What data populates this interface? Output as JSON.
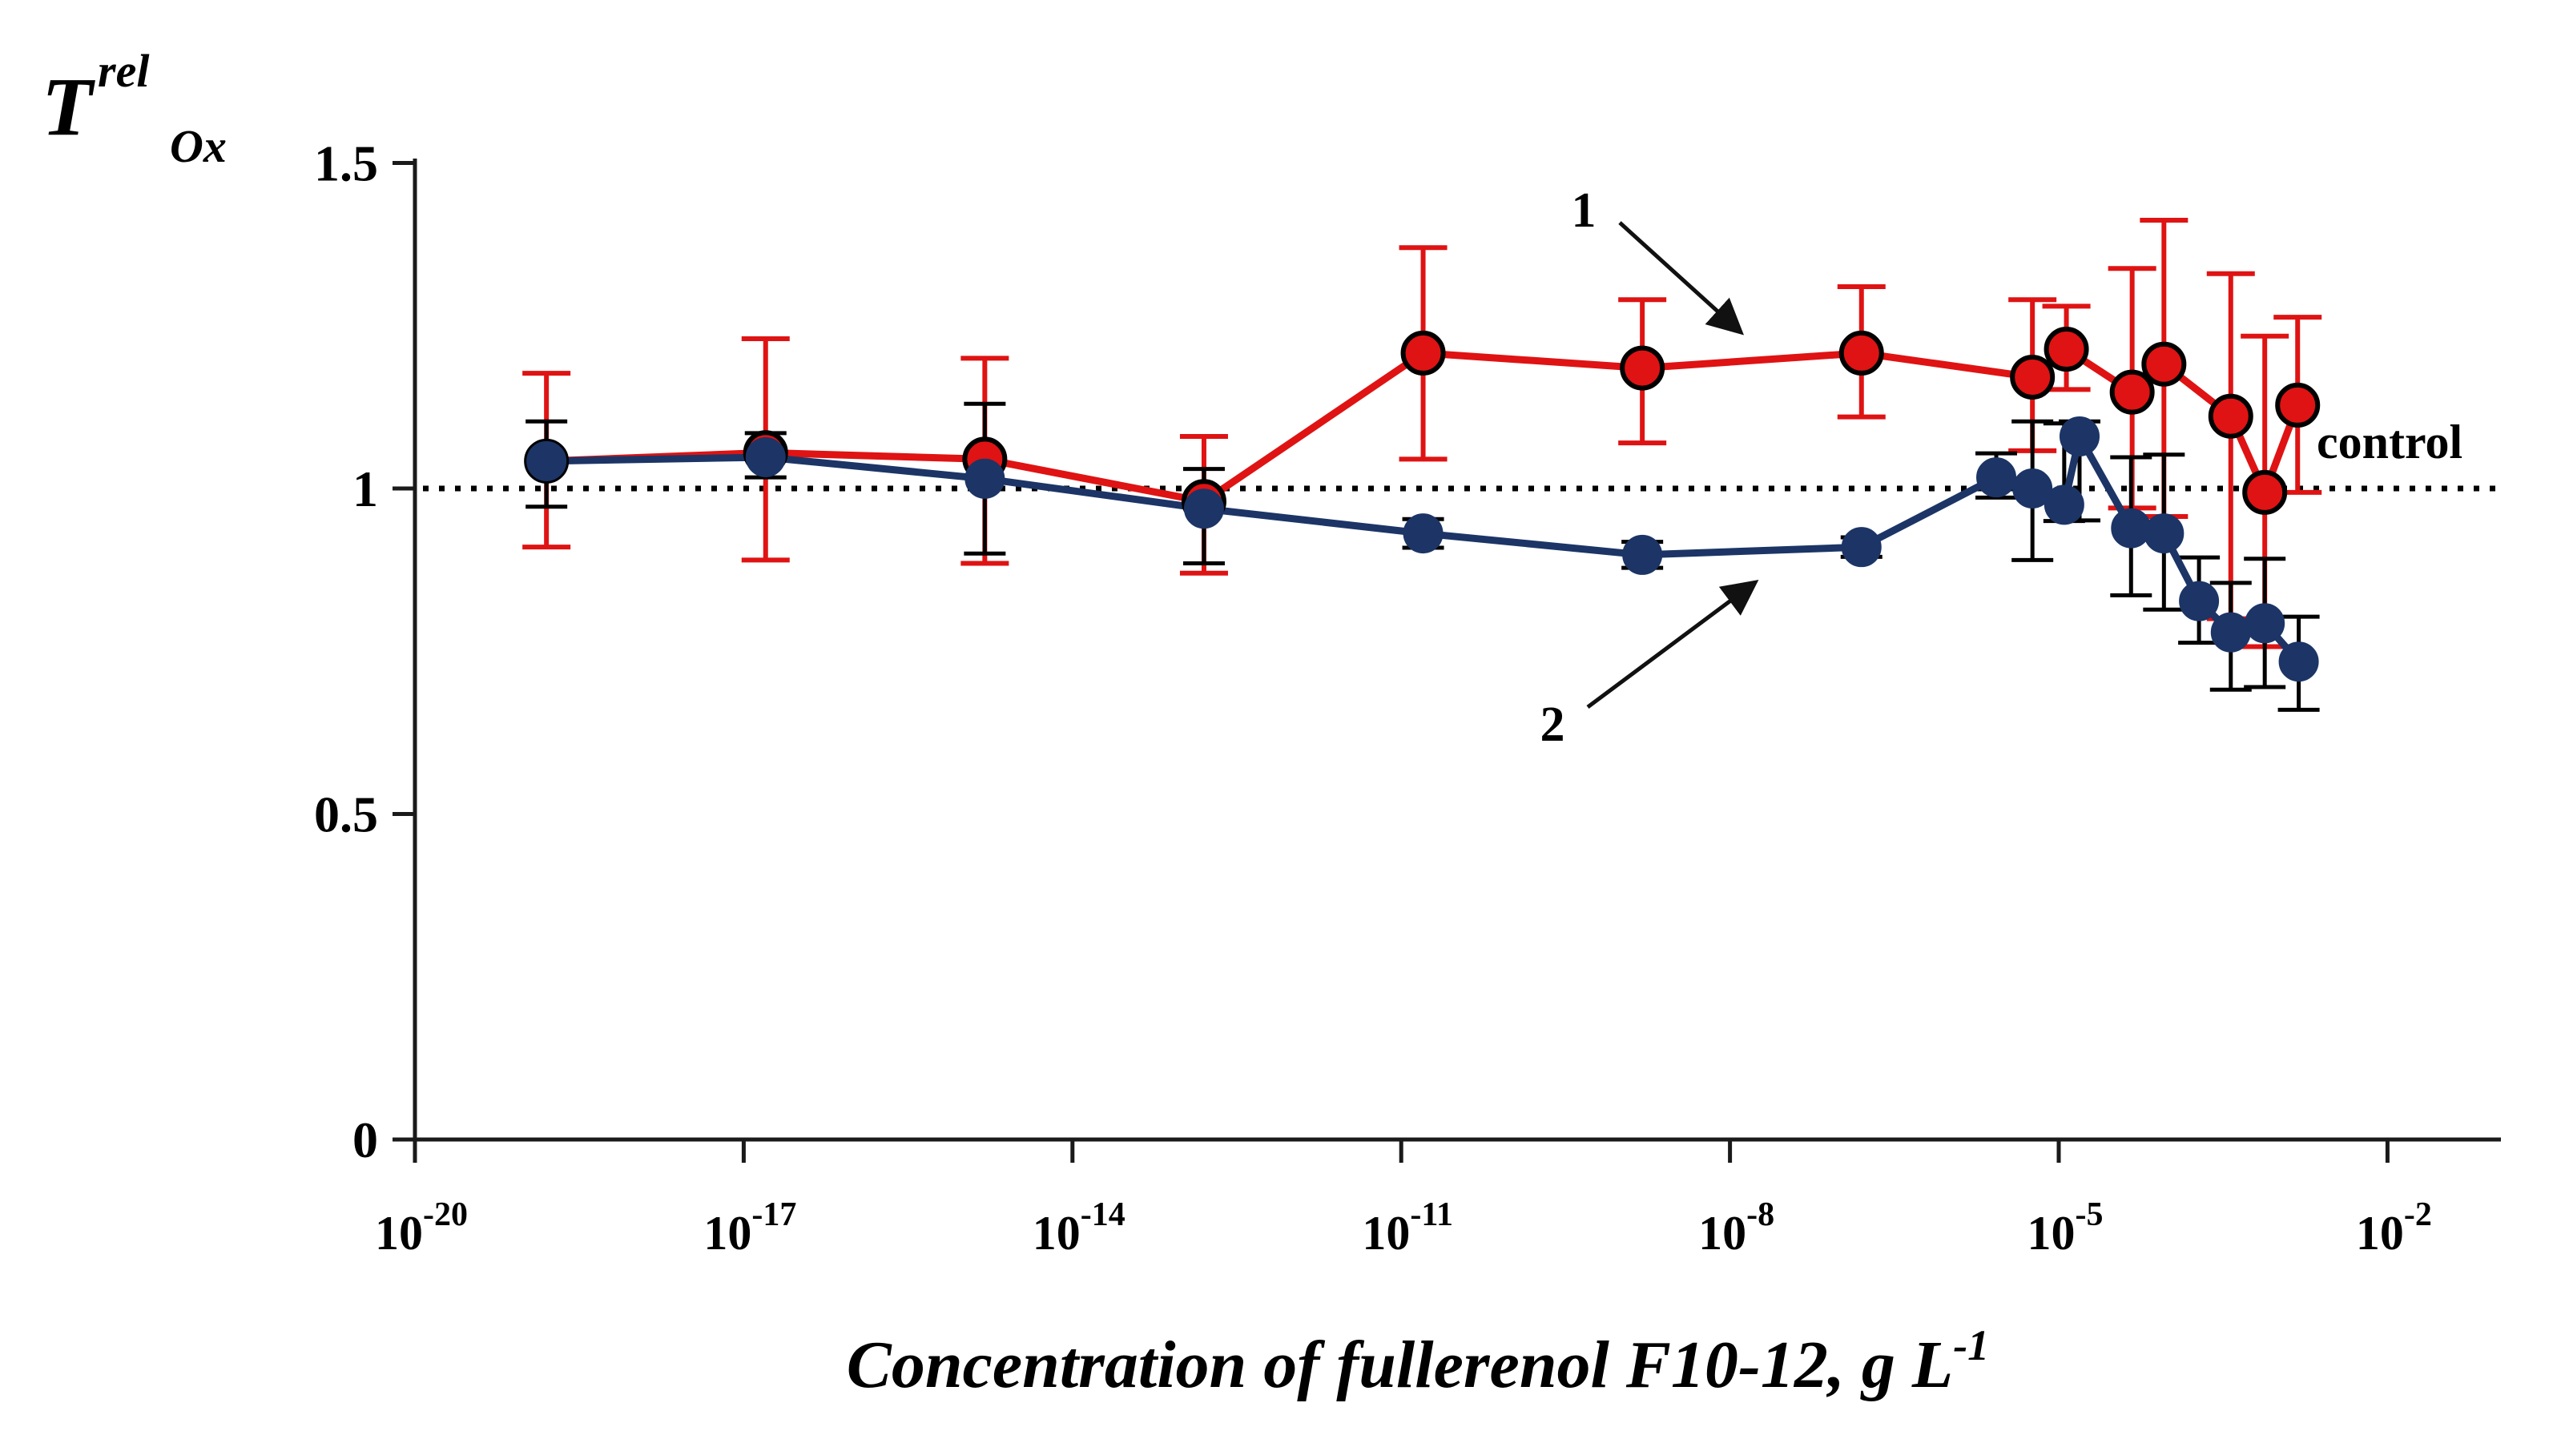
{
  "chart_data": {
    "type": "line",
    "y_axis_title": {
      "main": "T",
      "sup": "rel",
      "sub": "Ox"
    },
    "x_axis_title": {
      "main": "Concentration of fullerenol F10-12, g L",
      "exp": "-1"
    },
    "control_label": "control",
    "control_line_y": 1.0,
    "x_scale": "log10",
    "xlim_log": [
      -20.9,
      -1.2
    ],
    "ylim": [
      0,
      1.55
    ],
    "grid": false,
    "legend_position": "none",
    "x_ticks": [
      {
        "base": "10",
        "exp": "-20",
        "log": -20
      },
      {
        "base": "10",
        "exp": "-17",
        "log": -17
      },
      {
        "base": "10",
        "exp": "-14",
        "log": -14
      },
      {
        "base": "10",
        "exp": "-11",
        "log": -11
      },
      {
        "base": "10",
        "exp": "-8",
        "log": -8
      },
      {
        "base": "10",
        "exp": "-5",
        "log": -5
      },
      {
        "base": "10",
        "exp": "-2",
        "log": -2
      }
    ],
    "y_ticks": [
      {
        "label": "1.5",
        "value": 1.5
      },
      {
        "label": "1",
        "value": 1.0
      },
      {
        "label": "0.5",
        "value": 0.5
      },
      {
        "label": "0",
        "value": 0.0
      }
    ],
    "series": [
      {
        "name": "1",
        "color": "#df1313",
        "err_color": "#df1313",
        "marker": "circle-black-ring",
        "points": [
          {
            "logc": -18.8,
            "y": 1.042,
            "eu": 0.135,
            "ed": 0.132
          },
          {
            "logc": -16.8,
            "y": 1.055,
            "eu": 0.175,
            "ed": 0.165
          },
          {
            "logc": -14.8,
            "y": 1.045,
            "eu": 0.155,
            "ed": 0.16
          },
          {
            "logc": -12.8,
            "y": 0.98,
            "eu": 0.1,
            "ed": 0.11
          },
          {
            "logc": -10.8,
            "y": 1.208,
            "eu": 0.162,
            "ed": 0.163
          },
          {
            "logc": -8.8,
            "y": 1.185,
            "eu": 0.105,
            "ed": 0.115
          },
          {
            "logc": -6.8,
            "y": 1.208,
            "eu": 0.102,
            "ed": 0.098
          },
          {
            "logc": -5.24,
            "y": 1.171,
            "eu": 0.119,
            "ed": 0.113
          },
          {
            "logc": -4.93,
            "y": 1.214,
            "eu": 0.066,
            "ed": 0.062
          },
          {
            "logc": -4.33,
            "y": 1.148,
            "eu": 0.19,
            "ed": 0.178
          },
          {
            "logc": -4.04,
            "y": 1.191,
            "eu": 0.221,
            "ed": 0.234
          },
          {
            "logc": -3.43,
            "y": 1.111,
            "eu": 0.219,
            "ed": 0.311
          },
          {
            "logc": -3.12,
            "y": 0.994,
            "eu": 0.24,
            "ed": 0.237
          },
          {
            "logc": -2.82,
            "y": 1.128,
            "eu": 0.135,
            "ed": 0.134
          }
        ]
      },
      {
        "name": "2",
        "color": "#1c3566",
        "err_color": "#000000",
        "marker": "circle",
        "points": [
          {
            "logc": -18.8,
            "y": 1.042,
            "eu": 0.061,
            "ed": 0.07
          },
          {
            "logc": -16.8,
            "y": 1.048,
            "eu": 0.037,
            "ed": 0.031
          },
          {
            "logc": -14.8,
            "y": 1.015,
            "eu": 0.115,
            "ed": 0.115
          },
          {
            "logc": -12.8,
            "y": 0.969,
            "eu": 0.061,
            "ed": 0.084
          },
          {
            "logc": -10.8,
            "y": 0.931,
            "eu": 0.022,
            "ed": 0.022
          },
          {
            "logc": -8.8,
            "y": 0.898,
            "eu": 0.02,
            "ed": 0.02
          },
          {
            "logc": -6.8,
            "y": 0.91,
            "eu": 0.015,
            "ed": 0.015
          },
          {
            "logc": -5.57,
            "y": 1.017,
            "eu": 0.037,
            "ed": 0.031
          },
          {
            "logc": -5.24,
            "y": 1.0,
            "eu": 0.103,
            "ed": 0.11
          },
          {
            "logc": -4.95,
            "y": 0.975,
            "eu": 0.125,
            "ed": 0.025
          },
          {
            "logc": -4.81,
            "y": 1.08,
            "eu": 0.023,
            "ed": 0.129
          },
          {
            "logc": -4.34,
            "y": 0.939,
            "eu": 0.109,
            "ed": 0.103
          },
          {
            "logc": -4.04,
            "y": 0.931,
            "eu": 0.121,
            "ed": 0.117
          },
          {
            "logc": -3.72,
            "y": 0.827,
            "eu": 0.067,
            "ed": 0.064
          },
          {
            "logc": -3.43,
            "y": 0.779,
            "eu": 0.076,
            "ed": 0.088
          },
          {
            "logc": -3.12,
            "y": 0.793,
            "eu": 0.099,
            "ed": 0.098
          },
          {
            "logc": -2.81,
            "y": 0.734,
            "eu": 0.069,
            "ed": 0.074
          }
        ]
      }
    ],
    "annotations": [
      {
        "text": "1"
      },
      {
        "text": "2"
      }
    ]
  }
}
